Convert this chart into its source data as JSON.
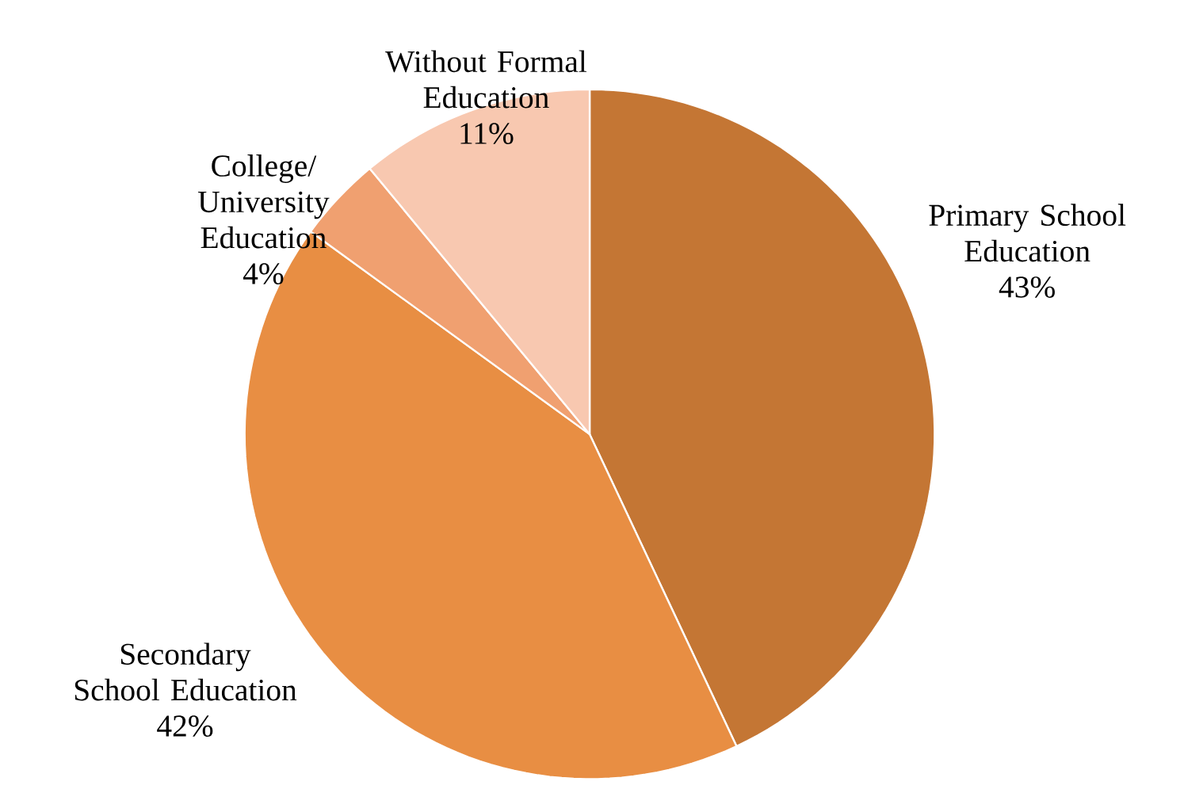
{
  "chart_data": {
    "type": "pie",
    "categories": [
      "Primary School Education",
      "Secondary School Education",
      "College/ University Education",
      "Without Formal Education"
    ],
    "values": [
      43,
      42,
      4,
      11
    ],
    "value_labels": [
      "43%",
      "42%",
      "4%",
      "11%"
    ],
    "colors": [
      "#c47634",
      "#e88e43",
      "#f0a070",
      "#f8c8b0"
    ],
    "legend": false
  }
}
